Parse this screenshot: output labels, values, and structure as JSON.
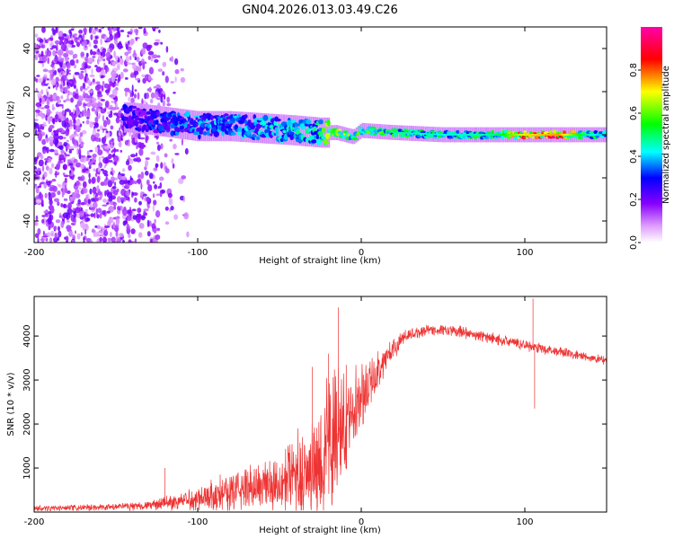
{
  "title": "GN04.2026.013.03.49.C26",
  "chart_data": [
    {
      "type": "heatmap",
      "name": "spectrogram",
      "xlabel": "Height of straight line (km)",
      "ylabel": "Frequency (Hz)",
      "xlim": [
        -200,
        150
      ],
      "ylim": [
        -50,
        50
      ],
      "xticks": [
        -200,
        -100,
        0,
        100
      ],
      "xtick_labels": [
        "-200",
        "-100",
        "0",
        "100"
      ],
      "yticks": [
        -40,
        -20,
        0,
        20,
        40
      ],
      "ytick_labels": [
        "-40",
        "-20",
        "0",
        "20",
        "40"
      ],
      "colorbar": {
        "label": "Normalized spectral amplitude",
        "range": [
          0,
          1
        ],
        "ticks": [
          0,
          0.2,
          0.4,
          0.6,
          0.8
        ],
        "tick_labels": [
          "0.0",
          "0.2",
          "0.4",
          "0.6",
          "0.8"
        ],
        "colormap": [
          "#ffffff",
          "#8800ff",
          "#0000ff",
          "#00ffff",
          "#00ff00",
          "#ffff00",
          "#ff0000",
          "#ff00aa"
        ]
      },
      "ridge": [
        {
          "x": -140,
          "freq": 8,
          "amp": 0.25
        },
        {
          "x": -120,
          "freq": 6,
          "amp": 0.3
        },
        {
          "x": -100,
          "freq": 4,
          "amp": 0.35
        },
        {
          "x": -80,
          "freq": 4,
          "amp": 0.35
        },
        {
          "x": -60,
          "freq": 3,
          "amp": 0.38
        },
        {
          "x": -40,
          "freq": 2,
          "amp": 0.4
        },
        {
          "x": -25,
          "freq": 1,
          "amp": 0.45
        },
        {
          "x": -15,
          "freq": 1,
          "amp": 0.7
        },
        {
          "x": -5,
          "freq": -1,
          "amp": 0.5
        },
        {
          "x": 0,
          "freq": 2,
          "amp": 0.55
        },
        {
          "x": 20,
          "freq": 1,
          "amp": 0.5
        },
        {
          "x": 50,
          "freq": 0,
          "amp": 0.45
        },
        {
          "x": 80,
          "freq": 0,
          "amp": 0.5
        },
        {
          "x": 100,
          "freq": 0,
          "amp": 0.75
        },
        {
          "x": 120,
          "freq": 0,
          "amp": 0.8
        },
        {
          "x": 140,
          "freq": 0,
          "amp": 0.45
        },
        {
          "x": 150,
          "freq": 0,
          "amp": 0.4
        }
      ]
    },
    {
      "type": "line",
      "name": "snr",
      "xlabel": "Height of straight line (km)",
      "ylabel": "SNR (10 * v/v)",
      "xlim": [
        -200,
        150
      ],
      "ylim": [
        0,
        4900
      ],
      "xticks": [
        -200,
        -100,
        0,
        100
      ],
      "xtick_labels": [
        "-200",
        "-100",
        "0",
        "100"
      ],
      "yticks": [
        1000,
        2000,
        3000,
        4000
      ],
      "ytick_labels": [
        "1000",
        "2000",
        "3000",
        "4000"
      ],
      "color": "#ee3333",
      "envelope": [
        {
          "x": -200,
          "mean": 80,
          "amp": 80
        },
        {
          "x": -160,
          "mean": 100,
          "amp": 90
        },
        {
          "x": -130,
          "mean": 150,
          "amp": 120
        },
        {
          "x": -110,
          "mean": 250,
          "amp": 250
        },
        {
          "x": -90,
          "mean": 400,
          "amp": 450
        },
        {
          "x": -70,
          "mean": 550,
          "amp": 600
        },
        {
          "x": -50,
          "mean": 700,
          "amp": 800
        },
        {
          "x": -35,
          "mean": 900,
          "amp": 1200
        },
        {
          "x": -25,
          "mean": 1100,
          "amp": 1800
        },
        {
          "x": -15,
          "mean": 1700,
          "amp": 2000
        },
        {
          "x": -5,
          "mean": 2400,
          "amp": 1000
        },
        {
          "x": 5,
          "mean": 2900,
          "amp": 700
        },
        {
          "x": 15,
          "mean": 3500,
          "amp": 400
        },
        {
          "x": 25,
          "mean": 3950,
          "amp": 200
        },
        {
          "x": 40,
          "mean": 4150,
          "amp": 150
        },
        {
          "x": 60,
          "mean": 4100,
          "amp": 150
        },
        {
          "x": 80,
          "mean": 3950,
          "amp": 150
        },
        {
          "x": 100,
          "mean": 3800,
          "amp": 150
        },
        {
          "x": 120,
          "mean": 3650,
          "amp": 150
        },
        {
          "x": 140,
          "mean": 3500,
          "amp": 120
        },
        {
          "x": 150,
          "mean": 3450,
          "amp": 120
        }
      ],
      "spikes": [
        {
          "x": -120,
          "y": 1000
        },
        {
          "x": -30,
          "y": 3300
        },
        {
          "x": -20,
          "y": 3600
        },
        {
          "x": -14,
          "y": 4650
        },
        {
          "x": 105,
          "y": 4850
        },
        {
          "x": 106,
          "y": 2350
        }
      ]
    }
  ]
}
